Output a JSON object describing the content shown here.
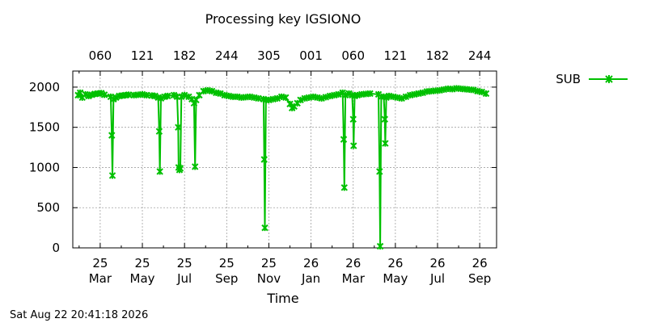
{
  "chart_data": {
    "type": "line",
    "title": "Processing key IGSIONO",
    "xlabel": "Time",
    "ylabel": "",
    "footer": "Sat Aug 22 20:41:18 2026",
    "ylim": [
      0,
      2200
    ],
    "y_ticks": [
      0,
      500,
      1000,
      1500,
      2000
    ],
    "x_unit": "months since Jan 2025",
    "xlim": [
      0.7,
      20.8
    ],
    "bottom_ticks": [
      {
        "pos": 2,
        "line1": "25",
        "line2": "Mar"
      },
      {
        "pos": 4,
        "line1": "25",
        "line2": "May"
      },
      {
        "pos": 6,
        "line1": "25",
        "line2": "Jul"
      },
      {
        "pos": 8,
        "line1": "25",
        "line2": "Sep"
      },
      {
        "pos": 10,
        "line1": "25",
        "line2": "Nov"
      },
      {
        "pos": 12,
        "line1": "26",
        "line2": "Jan"
      },
      {
        "pos": 14,
        "line1": "26",
        "line2": "Mar"
      },
      {
        "pos": 16,
        "line1": "26",
        "line2": "May"
      },
      {
        "pos": 18,
        "line1": "26",
        "line2": "Jul"
      },
      {
        "pos": 20,
        "line1": "26",
        "line2": "Sep"
      }
    ],
    "top_ticks": [
      {
        "pos": 2,
        "label": "060"
      },
      {
        "pos": 4,
        "label": "121"
      },
      {
        "pos": 6,
        "label": "182"
      },
      {
        "pos": 8,
        "label": "244"
      },
      {
        "pos": 10,
        "label": "305"
      },
      {
        "pos": 12,
        "label": "001"
      },
      {
        "pos": 14,
        "label": "060"
      },
      {
        "pos": 16,
        "label": "121"
      },
      {
        "pos": 18,
        "label": "182"
      },
      {
        "pos": 20,
        "label": "244"
      }
    ],
    "grid": true,
    "legend_position": "top-right outside plot",
    "series": [
      {
        "name": "SUB",
        "color": "#00c000",
        "marker": "x-cross",
        "points": [
          [
            0.95,
            1900
          ],
          [
            1.05,
            1930
          ],
          [
            1.15,
            1870
          ],
          [
            1.3,
            1910
          ],
          [
            1.45,
            1890
          ],
          [
            1.6,
            1905
          ],
          [
            1.75,
            1915
          ],
          [
            1.9,
            1920
          ],
          [
            2.05,
            1925
          ],
          [
            2.2,
            1905
          ],
          [
            2.5,
            1880
          ],
          [
            2.55,
            1400
          ],
          [
            2.58,
            900
          ],
          [
            2.63,
            1850
          ],
          [
            2.75,
            1870
          ],
          [
            2.9,
            1890
          ],
          [
            3.05,
            1895
          ],
          [
            3.2,
            1900
          ],
          [
            3.35,
            1905
          ],
          [
            3.6,
            1900
          ],
          [
            3.8,
            1905
          ],
          [
            4.0,
            1910
          ],
          [
            4.2,
            1900
          ],
          [
            4.45,
            1895
          ],
          [
            4.6,
            1890
          ],
          [
            4.75,
            1870
          ],
          [
            4.8,
            1450
          ],
          [
            4.83,
            950
          ],
          [
            4.88,
            1860
          ],
          [
            5.05,
            1880
          ],
          [
            5.2,
            1890
          ],
          [
            5.5,
            1900
          ],
          [
            5.65,
            1880
          ],
          [
            5.7,
            1500
          ],
          [
            5.72,
            1000
          ],
          [
            5.76,
            970
          ],
          [
            5.8,
            990
          ],
          [
            5.85,
            1880
          ],
          [
            6.0,
            1900
          ],
          [
            6.2,
            1880
          ],
          [
            6.35,
            1850
          ],
          [
            6.45,
            1800
          ],
          [
            6.5,
            1010
          ],
          [
            6.55,
            1840
          ],
          [
            6.7,
            1900
          ],
          [
            6.9,
            1950
          ],
          [
            7.1,
            1960
          ],
          [
            7.3,
            1950
          ],
          [
            7.5,
            1930
          ],
          [
            7.7,
            1920
          ],
          [
            7.9,
            1900
          ],
          [
            8.1,
            1890
          ],
          [
            8.3,
            1880
          ],
          [
            8.5,
            1880
          ],
          [
            8.7,
            1870
          ],
          [
            8.9,
            1875
          ],
          [
            9.1,
            1880
          ],
          [
            9.3,
            1870
          ],
          [
            9.5,
            1860
          ],
          [
            9.75,
            1850
          ],
          [
            9.78,
            1100
          ],
          [
            9.81,
            250
          ],
          [
            9.86,
            1840
          ],
          [
            10.0,
            1840
          ],
          [
            10.2,
            1850
          ],
          [
            10.4,
            1860
          ],
          [
            10.6,
            1880
          ],
          [
            10.8,
            1870
          ],
          [
            11.0,
            1790
          ],
          [
            11.1,
            1740
          ],
          [
            11.2,
            1760
          ],
          [
            11.35,
            1800
          ],
          [
            11.5,
            1840
          ],
          [
            11.7,
            1860
          ],
          [
            11.9,
            1870
          ],
          [
            12.1,
            1880
          ],
          [
            12.3,
            1870
          ],
          [
            12.5,
            1860
          ],
          [
            12.7,
            1875
          ],
          [
            12.9,
            1890
          ],
          [
            13.1,
            1900
          ],
          [
            13.3,
            1910
          ],
          [
            13.5,
            1930
          ],
          [
            13.55,
            1350
          ],
          [
            13.58,
            750
          ],
          [
            13.63,
            1900
          ],
          [
            13.8,
            1920
          ],
          [
            13.95,
            1900
          ],
          [
            14.0,
            1600
          ],
          [
            14.02,
            1270
          ],
          [
            14.07,
            1890
          ],
          [
            14.2,
            1900
          ],
          [
            14.4,
            1910
          ],
          [
            14.6,
            1915
          ],
          [
            14.8,
            1920
          ],
          [
            15.2,
            1910
          ],
          [
            15.25,
            950
          ],
          [
            15.28,
            20
          ],
          [
            15.33,
            1880
          ],
          [
            15.45,
            1880
          ],
          [
            15.5,
            1600
          ],
          [
            15.52,
            1300
          ],
          [
            15.57,
            1870
          ],
          [
            15.7,
            1890
          ],
          [
            15.9,
            1880
          ],
          [
            16.1,
            1870
          ],
          [
            16.3,
            1860
          ],
          [
            16.5,
            1880
          ],
          [
            16.7,
            1900
          ],
          [
            16.9,
            1910
          ],
          [
            17.1,
            1920
          ],
          [
            17.3,
            1930
          ],
          [
            17.5,
            1945
          ],
          [
            17.7,
            1950
          ],
          [
            17.9,
            1955
          ],
          [
            18.1,
            1960
          ],
          [
            18.3,
            1970
          ],
          [
            18.5,
            1980
          ],
          [
            18.7,
            1975
          ],
          [
            18.9,
            1985
          ],
          [
            19.1,
            1980
          ],
          [
            19.3,
            1975
          ],
          [
            19.5,
            1970
          ],
          [
            19.7,
            1965
          ],
          [
            19.9,
            1950
          ],
          [
            20.1,
            1940
          ],
          [
            20.3,
            1920
          ]
        ]
      }
    ]
  }
}
